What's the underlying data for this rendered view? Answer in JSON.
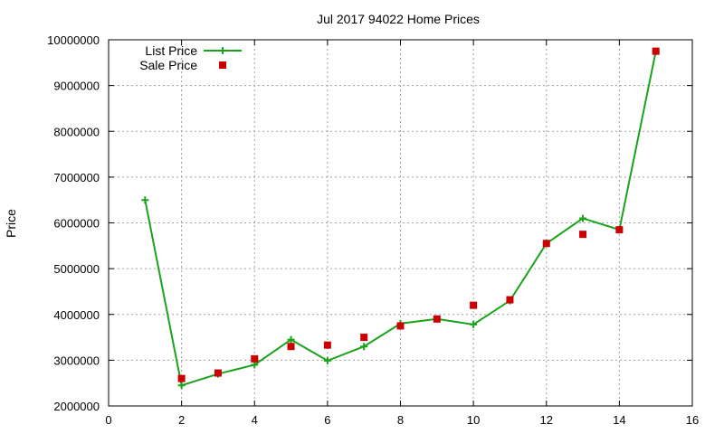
{
  "chart_data": {
    "type": "line",
    "title": "Jul 2017 94022 Home Prices",
    "xlabel": "",
    "ylabel": "Price",
    "xlim": [
      0,
      16
    ],
    "ylim": [
      2000000,
      10000000
    ],
    "x_ticks": [
      "0",
      "2",
      "4",
      "6",
      "8",
      "10",
      "12",
      "14",
      "16"
    ],
    "y_ticks": [
      "2000000",
      "3000000",
      "4000000",
      "5000000",
      "6000000",
      "7000000",
      "8000000",
      "9000000",
      "10000000"
    ],
    "grid": true,
    "legend_position": "top-left",
    "series": [
      {
        "name": "List Price",
        "style": "line-with-plus-markers",
        "color": "#1aa31a",
        "x": [
          1,
          2,
          3,
          4,
          5,
          6,
          7,
          8,
          9,
          10,
          11,
          12,
          13,
          14,
          15
        ],
        "values": [
          6500000,
          2450000,
          2700000,
          2900000,
          3450000,
          2990000,
          3300000,
          3800000,
          3900000,
          3780000,
          4300000,
          5550000,
          6100000,
          5850000,
          9750000
        ]
      },
      {
        "name": "Sale Price",
        "style": "square-markers",
        "color": "#cc0000",
        "x": [
          2,
          3,
          4,
          5,
          6,
          7,
          8,
          9,
          10,
          11,
          12,
          13,
          14,
          15
        ],
        "values": [
          2600000,
          2720000,
          3030000,
          3300000,
          3330000,
          3500000,
          3750000,
          3900000,
          4200000,
          4320000,
          5550000,
          5750000,
          5850000,
          9750000
        ]
      }
    ]
  }
}
